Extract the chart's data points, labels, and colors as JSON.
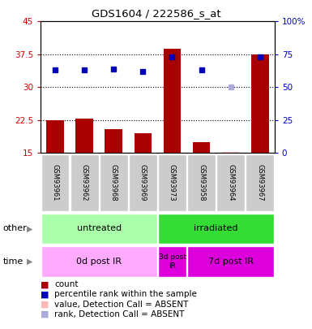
{
  "title": "GDS1604 / 222586_s_at",
  "samples": [
    "GSM93961",
    "GSM93962",
    "GSM93968",
    "GSM93969",
    "GSM93973",
    "GSM93958",
    "GSM93964",
    "GSM93967"
  ],
  "count_values": [
    22.5,
    22.8,
    20.5,
    19.5,
    38.8,
    17.5,
    15.3,
    37.5
  ],
  "count_absent": [
    false,
    false,
    false,
    false,
    false,
    false,
    true,
    false
  ],
  "rank_values": [
    63,
    63,
    64,
    62,
    73,
    63,
    50,
    73
  ],
  "rank_absent": [
    false,
    false,
    false,
    false,
    false,
    false,
    true,
    false
  ],
  "ylim_left": [
    15,
    45
  ],
  "ylim_right": [
    0,
    100
  ],
  "yticks_left": [
    15,
    22.5,
    30,
    37.5,
    45
  ],
  "yticks_right": [
    0,
    25,
    50,
    75,
    100
  ],
  "ytick_labels_left": [
    "15",
    "22.5",
    "30",
    "37.5",
    "45"
  ],
  "ytick_labels_right": [
    "0",
    "25",
    "50",
    "75",
    "100%"
  ],
  "hlines": [
    22.5,
    30,
    37.5
  ],
  "group_other": [
    {
      "label": "untreated",
      "start": 0,
      "end": 4,
      "color": "#AAFFAA"
    },
    {
      "label": "irradiated",
      "start": 4,
      "end": 8,
      "color": "#33DD33"
    }
  ],
  "group_time": [
    {
      "label": "0d post IR",
      "start": 0,
      "end": 4,
      "color": "#FFAAFF"
    },
    {
      "label": "3d post\nIR",
      "start": 4,
      "end": 5,
      "color": "#DD00DD"
    },
    {
      "label": "7d post IR",
      "start": 5,
      "end": 8,
      "color": "#DD00DD"
    }
  ],
  "bar_color_present": "#AA0000",
  "bar_color_absent": "#FFB6B6",
  "rank_color_present": "#0000BB",
  "rank_color_absent": "#AAAADD",
  "bg_color": "#CCCCCC",
  "left_axis_color": "#CC0000",
  "right_axis_color": "#0000CC",
  "legend": [
    {
      "label": "count",
      "color": "#AA0000"
    },
    {
      "label": "percentile rank within the sample",
      "color": "#0000BB"
    },
    {
      "label": "value, Detection Call = ABSENT",
      "color": "#FFB6B6"
    },
    {
      "label": "rank, Detection Call = ABSENT",
      "color": "#AAAADD"
    }
  ]
}
